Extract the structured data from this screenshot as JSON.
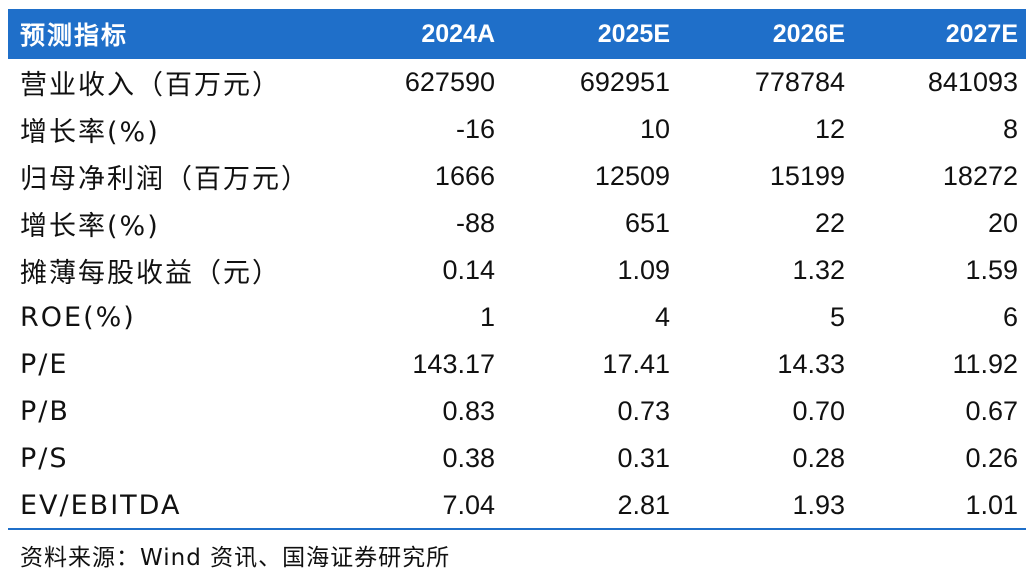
{
  "table": {
    "headers": [
      "预测指标",
      "2024A",
      "2025E",
      "2026E",
      "2027E"
    ],
    "rows": [
      [
        "营业收入（百万元）",
        "627590",
        "692951",
        "778784",
        "841093"
      ],
      [
        "增长率(%)",
        "-16",
        "10",
        "12",
        "8"
      ],
      [
        "归母净利润（百万元）",
        "1666",
        "12509",
        "15199",
        "18272"
      ],
      [
        "增长率(%)",
        "-88",
        "651",
        "22",
        "20"
      ],
      [
        "摊薄每股收益（元）",
        "0.14",
        "1.09",
        "1.32",
        "1.59"
      ],
      [
        "ROE(%)",
        "1",
        "4",
        "5",
        "6"
      ],
      [
        "P/E",
        "143.17",
        "17.41",
        "14.33",
        "11.92"
      ],
      [
        "P/B",
        "0.83",
        "0.73",
        "0.70",
        "0.67"
      ],
      [
        "P/S",
        "0.38",
        "0.31",
        "0.28",
        "0.26"
      ],
      [
        "EV/EBITDA",
        "7.04",
        "2.81",
        "1.93",
        "1.01"
      ]
    ]
  },
  "source": "资料来源：Wind 资讯、国海证券研究所",
  "colors": {
    "header_bg": "#1f6fc9",
    "header_text": "#ffffff",
    "rule": "#1f6fc9"
  }
}
